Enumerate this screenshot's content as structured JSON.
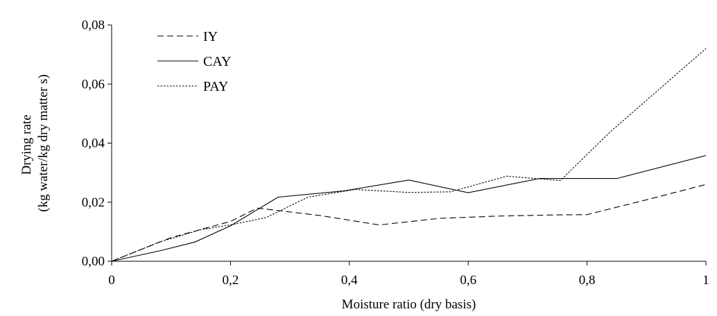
{
  "chart_data": {
    "type": "line",
    "xlabel": "Moisture ratio (dry basis)",
    "ylabel": [
      "Drying rate",
      "(kg water/kg dry matter s)"
    ],
    "xlim": [
      0,
      1
    ],
    "ylim": [
      0,
      0.08
    ],
    "x_ticks": [
      0,
      0.2,
      0.4,
      0.6,
      0.8,
      1
    ],
    "x_tick_labels": [
      "0",
      "0,2",
      "0,4",
      "0,6",
      "0,8",
      "1"
    ],
    "y_ticks": [
      0,
      0.02,
      0.04,
      0.06,
      0.08
    ],
    "y_tick_labels": [
      "0,00",
      "0,02",
      "0,04",
      "0,06",
      "0,08"
    ],
    "grid": false,
    "legend_position": "top-left",
    "series": [
      {
        "name": "IY",
        "style": "dashed",
        "points": [
          [
            0,
            0
          ],
          [
            0.1,
            0.008
          ],
          [
            0.2,
            0.0135
          ],
          [
            0.245,
            0.018
          ],
          [
            0.35,
            0.0155
          ],
          [
            0.45,
            0.0123
          ],
          [
            0.55,
            0.0145
          ],
          [
            0.65,
            0.0153
          ],
          [
            0.75,
            0.0157
          ],
          [
            0.8,
            0.0158
          ],
          [
            0.9,
            0.0208
          ],
          [
            1.0,
            0.026
          ]
        ]
      },
      {
        "name": "CAY",
        "style": "solid",
        "points": [
          [
            0,
            0
          ],
          [
            0.08,
            0.0035
          ],
          [
            0.14,
            0.0065
          ],
          [
            0.2,
            0.012
          ],
          [
            0.28,
            0.0217
          ],
          [
            0.39,
            0.0238
          ],
          [
            0.5,
            0.0275
          ],
          [
            0.6,
            0.0232
          ],
          [
            0.72,
            0.028
          ],
          [
            0.85,
            0.028
          ],
          [
            1.0,
            0.0358
          ]
        ]
      },
      {
        "name": "PAY",
        "style": "dotted",
        "points": [
          [
            0,
            0
          ],
          [
            0.08,
            0.0065
          ],
          [
            0.15,
            0.0107
          ],
          [
            0.2,
            0.0123
          ],
          [
            0.26,
            0.0148
          ],
          [
            0.33,
            0.0217
          ],
          [
            0.41,
            0.0243
          ],
          [
            0.5,
            0.0233
          ],
          [
            0.57,
            0.0235
          ],
          [
            0.665,
            0.0288
          ],
          [
            0.755,
            0.0273
          ],
          [
            0.84,
            0.044
          ],
          [
            1.0,
            0.072
          ]
        ]
      }
    ]
  }
}
